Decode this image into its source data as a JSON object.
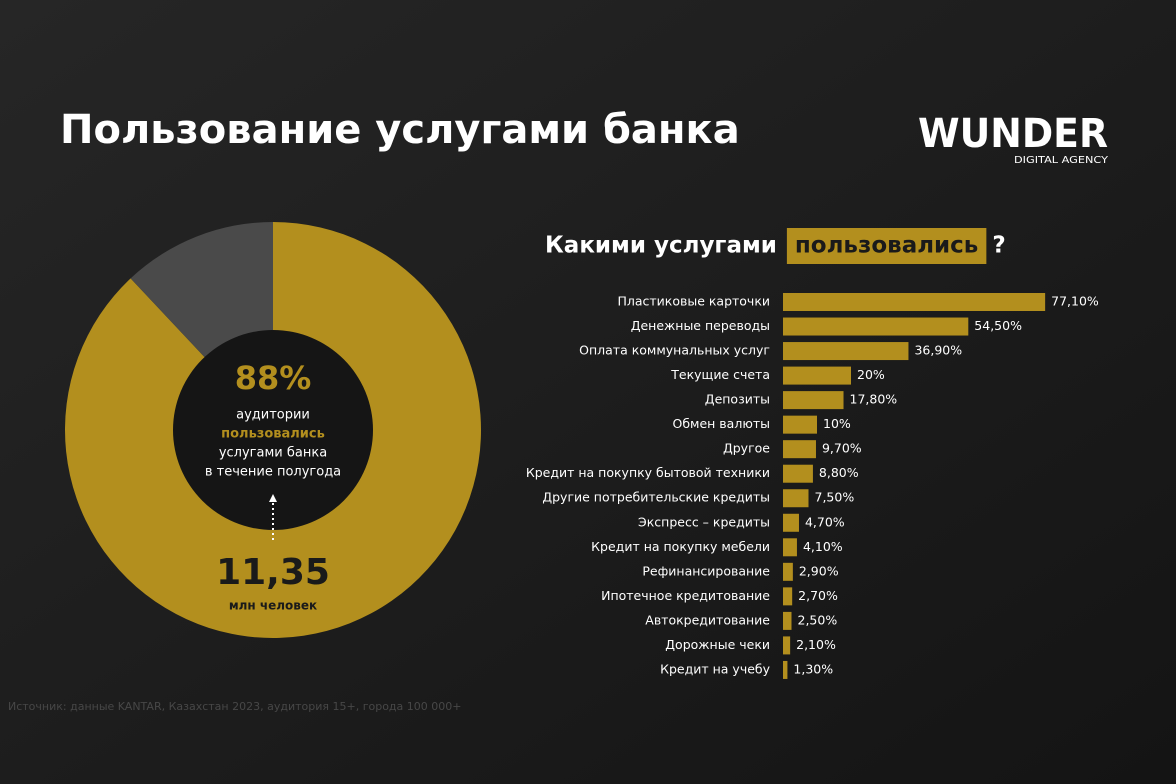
{
  "title": "Пользование услугами банка",
  "logo": {
    "name": "WUNDER",
    "tagline": "DIGITAL AGENCY"
  },
  "source": "Источник: данные KANTAR, Казахстан 2023, аудитория 15+, города 100 000+",
  "chart_data": [
    {
      "type": "pie",
      "values": [
        88,
        12
      ],
      "value_labels": [
        "88%",
        null
      ],
      "colors": [
        "#b38f1e",
        "#4a4a4a"
      ],
      "donut": true,
      "center_lines": [
        "аудитории",
        "пользовались",
        "услугами банка",
        "в течение полугода"
      ],
      "highlight_line": 1,
      "audience": "11,35",
      "audience_unit": "млн человек"
    },
    {
      "type": "hbar",
      "title": "Какими услугами",
      "title_highlight": "пользовались",
      "title_end": "?",
      "color": "#b38f1e",
      "categories": [
        "Пластиковые карточки",
        "Денежные переводы",
        "Оплата коммунальных услуг",
        "Текущие счета",
        "Депозиты",
        "Обмен валюты",
        "Другое",
        "Кредит на покупку бытовой техники",
        "Другие потребительские кредиты",
        "Экспресс – кредиты",
        "Кредит на покупку мебели",
        "Рефинансирование",
        "Ипотечное кредитование",
        "Автокредитование",
        "Дорожные чеки",
        "Кредит на учебу"
      ],
      "values": [
        77.1,
        54.5,
        36.9,
        20,
        17.8,
        10,
        9.7,
        8.8,
        7.5,
        4.7,
        4.1,
        2.9,
        2.7,
        2.5,
        2.1,
        1.3
      ],
      "value_labels": [
        "77,10%",
        "54,50%",
        "36,90%",
        "20%",
        "17,80%",
        "10%",
        "9,70%",
        "8,80%",
        "7,50%",
        "4,70%",
        "4,10%",
        "2,90%",
        "2,70%",
        "2,50%",
        "2,10%",
        "1,30%"
      ]
    }
  ]
}
